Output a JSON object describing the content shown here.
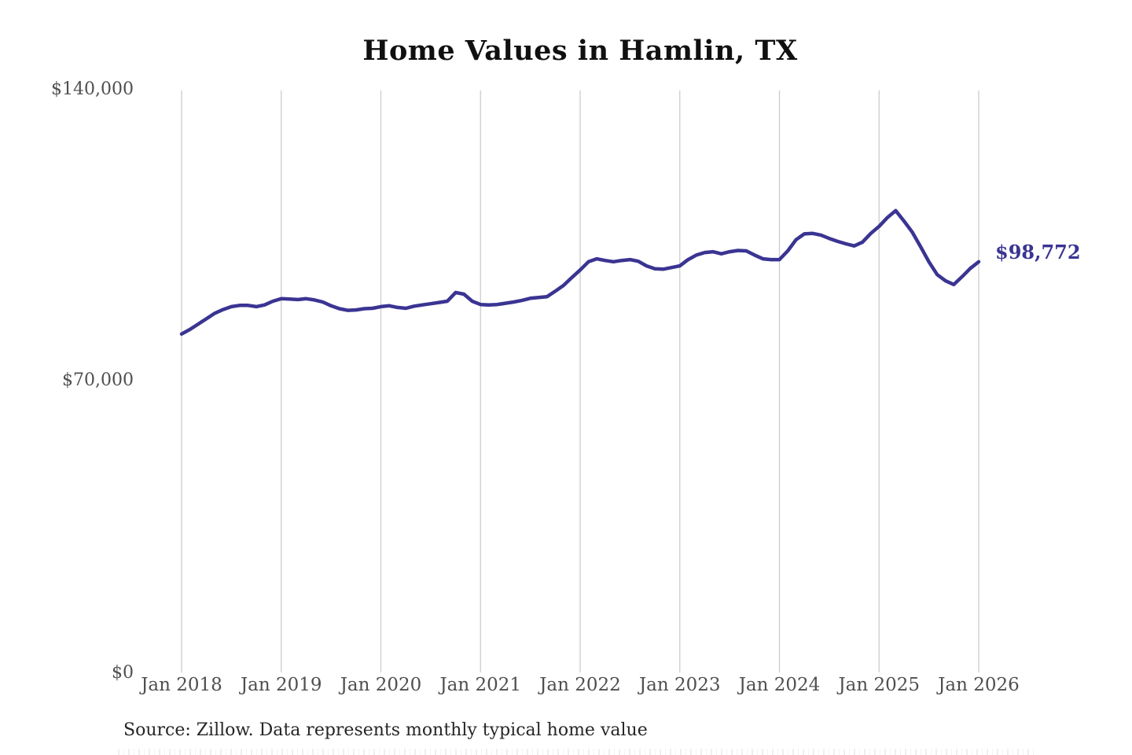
{
  "colors": {
    "line": "#3a3492",
    "grid": "#cccccc",
    "tick_text": "#4f4f4f",
    "title_text": "#101010",
    "source_text": "#262626"
  },
  "source_note": {
    "text": "Source: Zillow. Data represents monthly typical home value"
  },
  "chart_data": {
    "type": "line",
    "title": "Home Values in Hamlin, TX",
    "xlabel": "",
    "ylabel": "",
    "ylim": [
      0,
      140000
    ],
    "y_ticks": [
      140000,
      70000,
      0
    ],
    "y_tick_labels": [
      "$140,000",
      "$70,000",
      "$0"
    ],
    "x_tick_labels": [
      "Jan 2018",
      "Jan 2019",
      "Jan 2020",
      "Jan 2021",
      "Jan 2022",
      "Jan 2023",
      "Jan 2024",
      "Jan 2025",
      "Jan 2026"
    ],
    "x_frequency": "monthly",
    "x_range": [
      "Jan 2018",
      "Jan 2026"
    ],
    "grid": "vertical-only",
    "legend": "none",
    "end_label": "$98,772",
    "end_value": 98772,
    "series": [
      {
        "name": "Monthly typical home value",
        "values": [
          81400,
          82500,
          83800,
          85100,
          86400,
          87300,
          88000,
          88300,
          88300,
          88000,
          88400,
          89300,
          89900,
          89800,
          89700,
          89900,
          89600,
          89100,
          88200,
          87500,
          87100,
          87200,
          87500,
          87600,
          88000,
          88200,
          87800,
          87600,
          88100,
          88400,
          88700,
          89000,
          89300,
          91400,
          91000,
          89300,
          88500,
          88400,
          88500,
          88800,
          89100,
          89500,
          90000,
          90200,
          90400,
          91700,
          93100,
          95000,
          96800,
          98800,
          99500,
          99100,
          98800,
          99100,
          99300,
          98900,
          97800,
          97100,
          97000,
          97400,
          97800,
          99300,
          100400,
          101000,
          101200,
          100700,
          101200,
          101500,
          101400,
          100400,
          99500,
          99300,
          99300,
          101400,
          104100,
          105500,
          105600,
          105200,
          104400,
          103700,
          103100,
          102600,
          103500,
          105600,
          107300,
          109400,
          111100,
          108600,
          105900,
          102400,
          98800,
          95700,
          94200,
          93300,
          95200,
          97200,
          98772
        ]
      }
    ]
  }
}
